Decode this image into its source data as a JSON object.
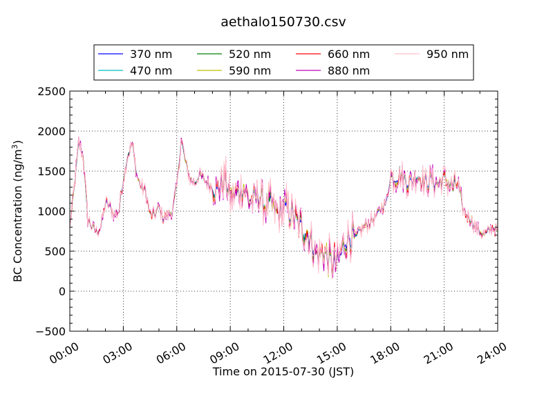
{
  "chart_data": {
    "type": "line",
    "title": "aethalo150730.csv",
    "xlabel": "Time on 2015-07-30 (JST)",
    "ylabel_main": "BC Concentration (ng/m",
    "ylabel_sup": "3",
    "ylabel_close": ")",
    "xlim": [
      0,
      24
    ],
    "ylim": [
      -500,
      2500
    ],
    "x_tick_values": [
      0,
      3,
      6,
      9,
      12,
      15,
      18,
      21,
      24
    ],
    "x_tick_labels": [
      "00:00",
      "03:00",
      "06:00",
      "09:00",
      "12:00",
      "15:00",
      "18:00",
      "21:00",
      "24:00"
    ],
    "y_tick_values": [
      -500,
      0,
      500,
      1000,
      1500,
      2000,
      2500
    ],
    "y_tick_labels": [
      "−500",
      "0",
      "500",
      "1000",
      "1500",
      "2000",
      "2500"
    ],
    "grid": true,
    "legend_position": "top, above plot, 4 columns",
    "series": [
      {
        "name": "370 nm",
        "color": "#0000ff"
      },
      {
        "name": "470 nm",
        "color": "#00bfbf"
      },
      {
        "name": "520 nm",
        "color": "#008000"
      },
      {
        "name": "590 nm",
        "color": "#bfbf00"
      },
      {
        "name": "660 nm",
        "color": "#ff0000"
      },
      {
        "name": "880 nm",
        "color": "#bf00bf"
      },
      {
        "name": "950 nm",
        "color": "#ffc0cb"
      }
    ],
    "x": [
      0,
      0.25,
      0.5,
      0.75,
      1,
      1.25,
      1.5,
      1.75,
      2,
      2.25,
      2.5,
      2.75,
      3,
      3.25,
      3.5,
      3.75,
      4,
      4.25,
      4.5,
      4.75,
      5,
      5.25,
      5.5,
      5.75,
      6,
      6.25,
      6.5,
      6.75,
      7,
      7.25,
      7.5,
      7.75,
      8,
      8.25,
      8.5,
      8.75,
      9,
      9.25,
      9.5,
      9.75,
      10,
      10.25,
      10.5,
      10.75,
      11,
      11.25,
      11.5,
      11.75,
      12,
      12.25,
      12.5,
      12.75,
      13,
      13.25,
      13.5,
      13.75,
      14,
      14.25,
      14.5,
      14.75,
      15,
      15.25,
      15.5,
      15.75,
      16,
      16.25,
      16.5,
      16.75,
      17,
      17.25,
      17.5,
      17.75,
      18,
      18.25,
      18.5,
      18.75,
      19,
      19.25,
      19.5,
      19.75,
      20,
      20.25,
      20.5,
      20.75,
      21,
      21.25,
      21.5,
      21.75,
      22,
      22.25,
      22.5,
      22.75,
      23,
      23.25,
      23.5,
      23.75,
      24
    ],
    "base_values": [
      800,
      1300,
      1850,
      1700,
      900,
      800,
      750,
      800,
      1100,
      1050,
      950,
      1000,
      1400,
      1700,
      1850,
      1450,
      1300,
      1250,
      950,
      950,
      1050,
      900,
      950,
      1000,
      1300,
      1900,
      1600,
      1400,
      1350,
      1450,
      1400,
      1350,
      1300,
      1250,
      1350,
      1400,
      1150,
      1200,
      1250,
      1300,
      1150,
      1100,
      1200,
      1150,
      1050,
      1100,
      1000,
      950,
      1050,
      1000,
      950,
      850,
      800,
      750,
      650,
      500,
      450,
      500,
      400,
      350,
      350,
      500,
      650,
      700,
      650,
      750,
      800,
      850,
      900,
      950,
      1050,
      1100,
      1450,
      1400,
      1450,
      1400,
      1350,
      1400,
      1450,
      1400,
      1350,
      1400,
      1350,
      1350,
      1400,
      1350,
      1300,
      1350,
      1050,
      950,
      900,
      800,
      750,
      700,
      750,
      800,
      750
    ]
  }
}
